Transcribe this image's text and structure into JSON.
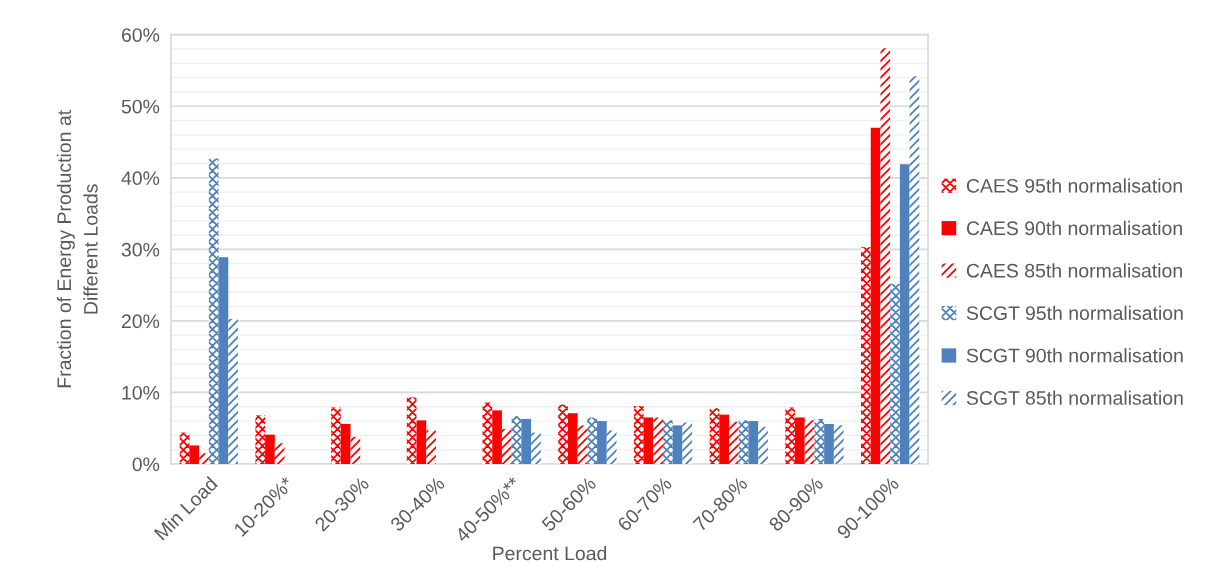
{
  "chart_data": {
    "type": "bar",
    "xlabel": "Percent Load",
    "ylabel": "Fraction of Energy Production at\nDifferent Loads",
    "categories": [
      "Min Load",
      "10-20%*",
      "20-30%",
      "30-40%",
      "40-50%**",
      "50-60%",
      "60-70%",
      "70-80%",
      "80-90%",
      "90-100%"
    ],
    "series": [
      {
        "name": "CAES 95th normalisation",
        "color": "#ff0000",
        "values": [
          4.4,
          6.8,
          7.9,
          9.3,
          8.6,
          8.3,
          8.1,
          7.8,
          7.9,
          30.3
        ]
      },
      {
        "name": "CAES 90th normalisation",
        "color": "#ff0000",
        "values": [
          2.6,
          4.1,
          5.6,
          6.1,
          7.5,
          7.1,
          6.5,
          6.9,
          6.5,
          47.0
        ]
      },
      {
        "name": "CAES 85th normalisation",
        "color": "#ff0000",
        "values": [
          1.5,
          2.9,
          3.8,
          4.7,
          4.9,
          5.4,
          6.5,
          5.9,
          6.1,
          58.1
        ]
      },
      {
        "name": "SCGT 95th normalisation",
        "color": "#4f81bd",
        "values": [
          42.7,
          null,
          null,
          null,
          6.7,
          6.5,
          6.1,
          6.1,
          6.3,
          25.2
        ]
      },
      {
        "name": "SCGT 90th normalisation",
        "color": "#4f81bd",
        "values": [
          28.9,
          null,
          null,
          null,
          6.3,
          6.0,
          5.4,
          6.0,
          5.6,
          41.9
        ]
      },
      {
        "name": "SCGT 85th normalisation",
        "color": "#4f81bd",
        "values": [
          20.3,
          null,
          null,
          null,
          4.4,
          4.7,
          5.8,
          5.2,
          5.4,
          54.2
        ]
      }
    ],
    "ylim": [
      0,
      60
    ],
    "yticks": [
      {
        "value": 0,
        "label": "0%"
      },
      {
        "value": 2,
        "label": null
      },
      {
        "value": 4,
        "label": null
      },
      {
        "value": 6,
        "label": null
      },
      {
        "value": 8,
        "label": null
      },
      {
        "value": 10,
        "label": "10%"
      },
      {
        "value": 12,
        "label": null
      },
      {
        "value": 14,
        "label": null
      },
      {
        "value": 16,
        "label": null
      },
      {
        "value": 18,
        "label": null
      },
      {
        "value": 20,
        "label": "20%"
      },
      {
        "value": 22,
        "label": null
      },
      {
        "value": 24,
        "label": null
      },
      {
        "value": 26,
        "label": null
      },
      {
        "value": 28,
        "label": null
      },
      {
        "value": 30,
        "label": "30%"
      },
      {
        "value": 32,
        "label": null
      },
      {
        "value": 34,
        "label": null
      },
      {
        "value": 36,
        "label": null
      },
      {
        "value": 38,
        "label": null
      },
      {
        "value": 40,
        "label": "40%"
      },
      {
        "value": 42,
        "label": null
      },
      {
        "value": 44,
        "label": null
      },
      {
        "value": 46,
        "label": null
      },
      {
        "value": 48,
        "label": null
      },
      {
        "value": 50,
        "label": "50%"
      },
      {
        "value": 52,
        "label": null
      },
      {
        "value": 54,
        "label": null
      },
      {
        "value": 56,
        "label": null
      },
      {
        "value": 58,
        "label": null
      },
      {
        "value": 60,
        "label": "60%"
      }
    ],
    "grid": "y",
    "legend": "right"
  }
}
